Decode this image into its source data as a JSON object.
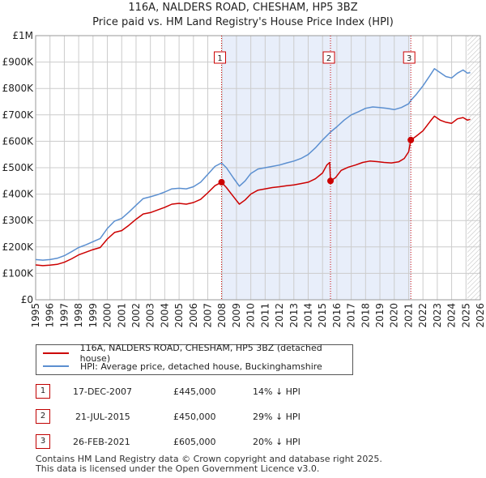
{
  "title": "116A, NALDERS ROAD, CHESHAM, HP5 3BZ",
  "subtitle": "Price paid vs. HM Land Registry's House Price Index (HPI)",
  "chart_data": {
    "type": "line",
    "x_range": [
      1995,
      2026
    ],
    "ylim": [
      0,
      1000000
    ],
    "y_ticks": [
      "£0",
      "£100K",
      "£200K",
      "£300K",
      "£400K",
      "£500K",
      "£600K",
      "£700K",
      "£800K",
      "£900K",
      "£1M"
    ],
    "x_ticks": [
      "1995",
      "1996",
      "1997",
      "1998",
      "1999",
      "2000",
      "2001",
      "2002",
      "2003",
      "2004",
      "2005",
      "2006",
      "2007",
      "2008",
      "2009",
      "2010",
      "2011",
      "2012",
      "2013",
      "2014",
      "2015",
      "2016",
      "2017",
      "2018",
      "2019",
      "2020",
      "2021",
      "2022",
      "2023",
      "2024",
      "2025",
      "2026"
    ],
    "grid": true,
    "series": [
      {
        "name": "116A, NALDERS ROAD, CHESHAM, HP5 3BZ (detached house)",
        "color": "#cc0000",
        "points": [
          [
            1995.0,
            132000
          ],
          [
            1995.5,
            129000
          ],
          [
            1996.0,
            131000
          ],
          [
            1996.5,
            134000
          ],
          [
            1997.0,
            142000
          ],
          [
            1997.5,
            155000
          ],
          [
            1998.0,
            170000
          ],
          [
            1998.5,
            180000
          ],
          [
            1999.0,
            190000
          ],
          [
            1999.5,
            198000
          ],
          [
            2000.0,
            230000
          ],
          [
            2000.5,
            255000
          ],
          [
            2001.0,
            262000
          ],
          [
            2001.5,
            282000
          ],
          [
            2002.0,
            305000
          ],
          [
            2002.5,
            325000
          ],
          [
            2003.0,
            330000
          ],
          [
            2003.5,
            340000
          ],
          [
            2004.0,
            350000
          ],
          [
            2004.5,
            362000
          ],
          [
            2005.0,
            365000
          ],
          [
            2005.5,
            362000
          ],
          [
            2006.0,
            368000
          ],
          [
            2006.5,
            380000
          ],
          [
            2007.0,
            405000
          ],
          [
            2007.5,
            432000
          ],
          [
            2007.96,
            445000
          ],
          [
            2008.3,
            425000
          ],
          [
            2008.8,
            390000
          ],
          [
            2009.2,
            362000
          ],
          [
            2009.6,
            378000
          ],
          [
            2010.0,
            400000
          ],
          [
            2010.5,
            415000
          ],
          [
            2011.0,
            420000
          ],
          [
            2011.5,
            425000
          ],
          [
            2012.0,
            428000
          ],
          [
            2012.5,
            432000
          ],
          [
            2013.0,
            435000
          ],
          [
            2013.5,
            440000
          ],
          [
            2014.0,
            445000
          ],
          [
            2014.5,
            458000
          ],
          [
            2015.0,
            480000
          ],
          [
            2015.3,
            510000
          ],
          [
            2015.5,
            520000
          ],
          [
            2015.555,
            450000
          ],
          [
            2015.9,
            462000
          ],
          [
            2016.3,
            490000
          ],
          [
            2016.8,
            502000
          ],
          [
            2017.3,
            510000
          ],
          [
            2017.8,
            520000
          ],
          [
            2018.3,
            525000
          ],
          [
            2018.8,
            523000
          ],
          [
            2019.3,
            520000
          ],
          [
            2019.8,
            518000
          ],
          [
            2020.3,
            522000
          ],
          [
            2020.7,
            535000
          ],
          [
            2021.0,
            560000
          ],
          [
            2021.155,
            605000
          ],
          [
            2021.5,
            618000
          ],
          [
            2022.0,
            640000
          ],
          [
            2022.5,
            675000
          ],
          [
            2022.8,
            695000
          ],
          [
            2023.2,
            680000
          ],
          [
            2023.6,
            672000
          ],
          [
            2024.0,
            668000
          ],
          [
            2024.4,
            685000
          ],
          [
            2024.8,
            690000
          ],
          [
            2025.1,
            680000
          ],
          [
            2025.3,
            683000
          ]
        ]
      },
      {
        "name": "HPI: Average price, detached house, Buckinghamshire",
        "color": "#5b8fd0",
        "points": [
          [
            1995.0,
            152000
          ],
          [
            1995.5,
            150000
          ],
          [
            1996.0,
            152000
          ],
          [
            1996.5,
            157000
          ],
          [
            1997.0,
            167000
          ],
          [
            1997.5,
            182000
          ],
          [
            1998.0,
            198000
          ],
          [
            1998.5,
            208000
          ],
          [
            1999.0,
            220000
          ],
          [
            1999.5,
            232000
          ],
          [
            2000.0,
            270000
          ],
          [
            2000.5,
            298000
          ],
          [
            2001.0,
            308000
          ],
          [
            2001.5,
            332000
          ],
          [
            2002.0,
            358000
          ],
          [
            2002.5,
            383000
          ],
          [
            2003.0,
            390000
          ],
          [
            2003.5,
            398000
          ],
          [
            2004.0,
            408000
          ],
          [
            2004.5,
            420000
          ],
          [
            2005.0,
            422000
          ],
          [
            2005.5,
            420000
          ],
          [
            2006.0,
            428000
          ],
          [
            2006.5,
            445000
          ],
          [
            2007.0,
            475000
          ],
          [
            2007.5,
            505000
          ],
          [
            2007.96,
            518000
          ],
          [
            2008.3,
            500000
          ],
          [
            2008.8,
            460000
          ],
          [
            2009.2,
            430000
          ],
          [
            2009.6,
            450000
          ],
          [
            2010.0,
            478000
          ],
          [
            2010.5,
            495000
          ],
          [
            2011.0,
            500000
          ],
          [
            2011.5,
            505000
          ],
          [
            2012.0,
            510000
          ],
          [
            2012.5,
            518000
          ],
          [
            2013.0,
            525000
          ],
          [
            2013.5,
            535000
          ],
          [
            2014.0,
            550000
          ],
          [
            2014.5,
            575000
          ],
          [
            2015.0,
            605000
          ],
          [
            2015.555,
            635000
          ],
          [
            2016.0,
            655000
          ],
          [
            2016.5,
            680000
          ],
          [
            2017.0,
            700000
          ],
          [
            2017.5,
            712000
          ],
          [
            2018.0,
            725000
          ],
          [
            2018.5,
            730000
          ],
          [
            2019.0,
            728000
          ],
          [
            2019.5,
            725000
          ],
          [
            2020.0,
            720000
          ],
          [
            2020.5,
            728000
          ],
          [
            2021.0,
            742000
          ],
          [
            2021.155,
            755000
          ],
          [
            2021.5,
            775000
          ],
          [
            2022.0,
            810000
          ],
          [
            2022.5,
            850000
          ],
          [
            2022.8,
            875000
          ],
          [
            2023.2,
            860000
          ],
          [
            2023.6,
            845000
          ],
          [
            2024.0,
            840000
          ],
          [
            2024.4,
            858000
          ],
          [
            2024.8,
            870000
          ],
          [
            2025.1,
            858000
          ],
          [
            2025.3,
            860000
          ]
        ]
      }
    ],
    "markers": [
      {
        "label": "1",
        "x": 2007.96,
        "value": 445000
      },
      {
        "label": "2",
        "x": 2015.555,
        "value": 450000
      },
      {
        "label": "3",
        "x": 2021.155,
        "value": 605000
      }
    ],
    "shaded_ranges": [
      [
        2007.96,
        2015.555
      ],
      [
        2015.555,
        2021.155
      ]
    ],
    "hatched_from": 2025.1
  },
  "legend": [
    {
      "label": "116A, NALDERS ROAD, CHESHAM, HP5 3BZ (detached house)",
      "color": "#cc0000"
    },
    {
      "label": "HPI: Average price, detached house, Buckinghamshire",
      "color": "#5b8fd0"
    }
  ],
  "transactions": [
    {
      "num": "1",
      "date": "17-DEC-2007",
      "price": "£445,000",
      "hpi": "14% ↓ HPI"
    },
    {
      "num": "2",
      "date": "21-JUL-2015",
      "price": "£450,000",
      "hpi": "29% ↓ HPI"
    },
    {
      "num": "3",
      "date": "26-FEB-2021",
      "price": "£605,000",
      "hpi": "20% ↓ HPI"
    }
  ],
  "footer": {
    "line1": "Contains HM Land Registry data © Crown copyright and database right 2025.",
    "line2": "This data is licensed under the Open Government Licence v3.0."
  }
}
